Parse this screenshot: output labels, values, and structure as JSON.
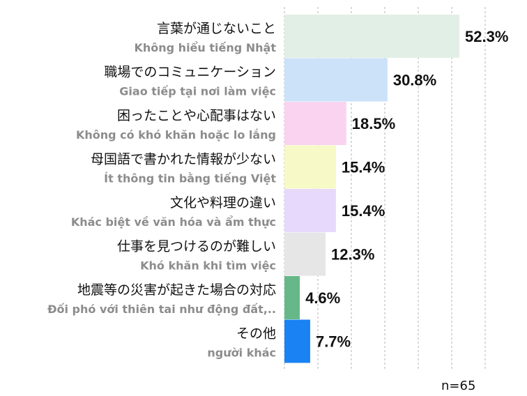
{
  "chart_data": {
    "type": "bar",
    "orientation": "horizontal",
    "categories": [
      {
        "jp": "言葉が通じないこと",
        "vi": "Không hiểu tiếng Nhật"
      },
      {
        "jp": "職場でのコミュニケーション",
        "vi": "Giao tiếp tại nơi làm việc"
      },
      {
        "jp": "困ったことや心配事はない",
        "vi": "Không có khó khăn hoặc lo lắng"
      },
      {
        "jp": "母国語で書かれた情報が少ない",
        "vi": "Ít thông tin bằng tiếng Việt"
      },
      {
        "jp": "文化や料理の違い",
        "vi": "Khác biệt về văn hóa và ẩm thực"
      },
      {
        "jp": "仕事を見つけるのが難しい",
        "vi": "Khó khăn khi tìm việc"
      },
      {
        "jp": "地震等の災害が起きた場合の対応",
        "vi": "Đối phó với thiên tai như động đất,.."
      },
      {
        "jp": "その他",
        "vi": "người khác"
      }
    ],
    "values": [
      52.3,
      30.8,
      18.5,
      15.4,
      15.4,
      12.3,
      4.6,
      7.7
    ],
    "value_labels": [
      "52.3%",
      "30.8%",
      "18.5%",
      "15.4%",
      "15.4%",
      "12.3%",
      "4.6%",
      "7.7%"
    ],
    "colors": [
      "#e2efe6",
      "#cce2f9",
      "#f9d3ef",
      "#f7f9c6",
      "#e6d9fb",
      "#e6e6e6",
      "#66b889",
      "#1a82f2"
    ],
    "xlim": [
      0,
      60
    ],
    "grid": true,
    "note": "n=65"
  }
}
